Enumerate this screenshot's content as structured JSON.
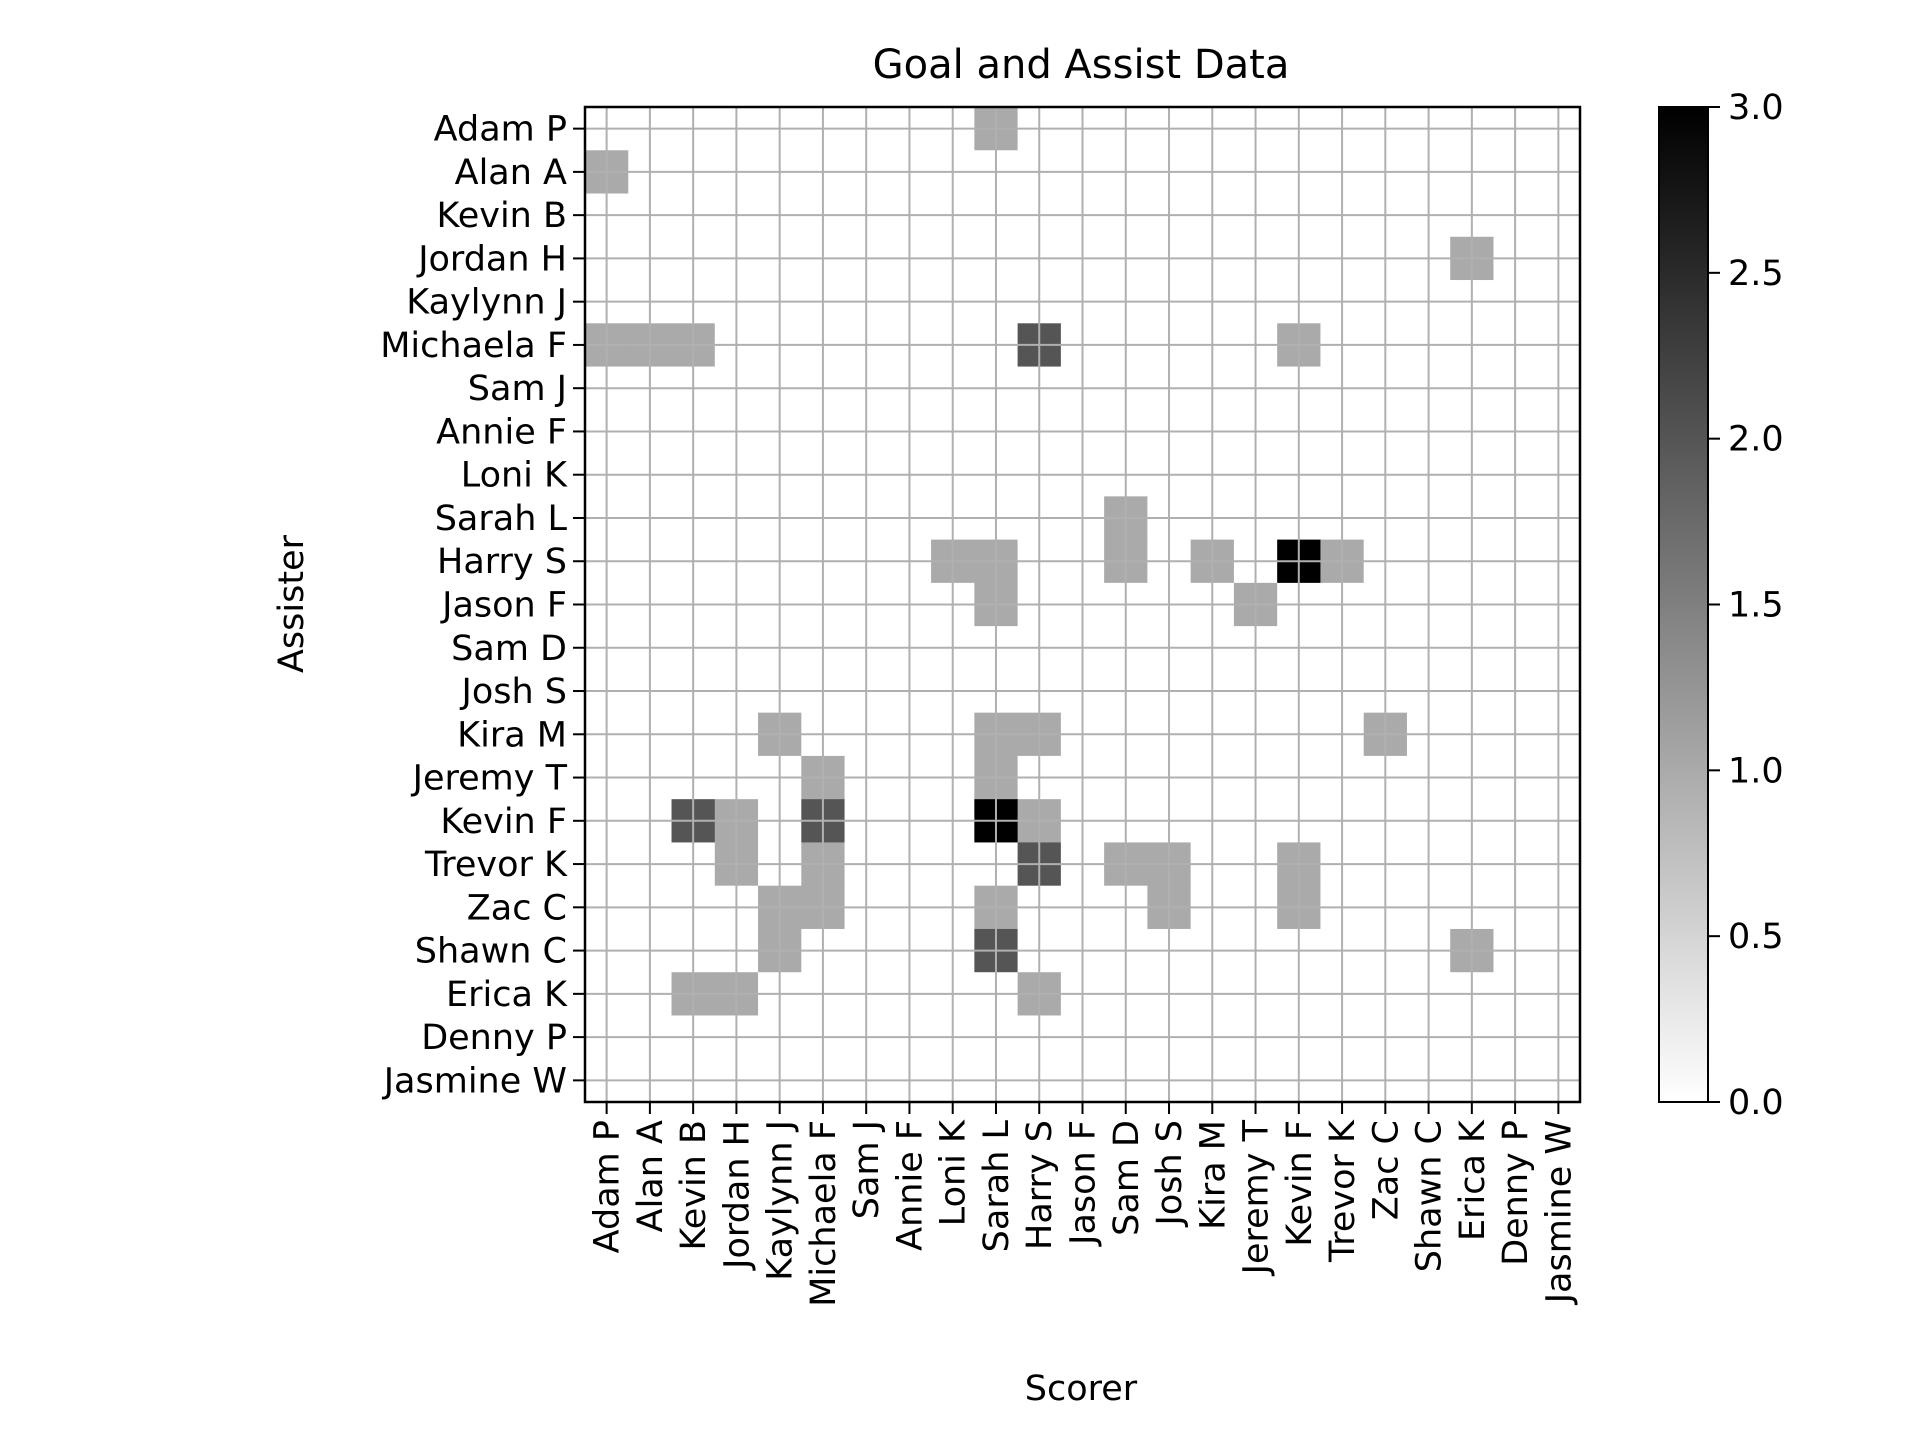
{
  "chart_data": {
    "type": "heatmap",
    "title": "Goal and Assist Data",
    "xlabel": "Scorer",
    "ylabel": "Assister",
    "x_categories": [
      "Adam P",
      "Alan A",
      "Kevin B",
      "Jordan H",
      "Kaylynn J",
      "Michaela F",
      "Sam J",
      "Annie F",
      "Loni K",
      "Sarah L",
      "Harry S",
      "Jason F",
      "Sam D",
      "Josh S",
      "Kira M",
      "Jeremy T",
      "Kevin F",
      "Trevor K",
      "Zac C",
      "Shawn C",
      "Erica K",
      "Denny P",
      "Jasmine W"
    ],
    "y_categories": [
      "Adam P",
      "Alan A",
      "Kevin B",
      "Jordan H",
      "Kaylynn J",
      "Michaela F",
      "Sam J",
      "Annie F",
      "Loni K",
      "Sarah L",
      "Harry S",
      "Jason F",
      "Sam D",
      "Josh S",
      "Kira M",
      "Jeremy T",
      "Kevin F",
      "Trevor K",
      "Zac C",
      "Shawn C",
      "Erica K",
      "Denny P",
      "Jasmine W"
    ],
    "values": [
      [
        0,
        0,
        0,
        0,
        0,
        0,
        0,
        0,
        0,
        1,
        0,
        0,
        0,
        0,
        0,
        0,
        0,
        0,
        0,
        0,
        0,
        0,
        0
      ],
      [
        1,
        0,
        0,
        0,
        0,
        0,
        0,
        0,
        0,
        0,
        0,
        0,
        0,
        0,
        0,
        0,
        0,
        0,
        0,
        0,
        0,
        0,
        0
      ],
      [
        0,
        0,
        0,
        0,
        0,
        0,
        0,
        0,
        0,
        0,
        0,
        0,
        0,
        0,
        0,
        0,
        0,
        0,
        0,
        0,
        0,
        0,
        0
      ],
      [
        0,
        0,
        0,
        0,
        0,
        0,
        0,
        0,
        0,
        0,
        0,
        0,
        0,
        0,
        0,
        0,
        0,
        0,
        0,
        0,
        1,
        0,
        0
      ],
      [
        0,
        0,
        0,
        0,
        0,
        0,
        0,
        0,
        0,
        0,
        0,
        0,
        0,
        0,
        0,
        0,
        0,
        0,
        0,
        0,
        0,
        0,
        0
      ],
      [
        1,
        1,
        1,
        0,
        0,
        0,
        0,
        0,
        0,
        0,
        2,
        0,
        0,
        0,
        0,
        0,
        1,
        0,
        0,
        0,
        0,
        0,
        0
      ],
      [
        0,
        0,
        0,
        0,
        0,
        0,
        0,
        0,
        0,
        0,
        0,
        0,
        0,
        0,
        0,
        0,
        0,
        0,
        0,
        0,
        0,
        0,
        0
      ],
      [
        0,
        0,
        0,
        0,
        0,
        0,
        0,
        0,
        0,
        0,
        0,
        0,
        0,
        0,
        0,
        0,
        0,
        0,
        0,
        0,
        0,
        0,
        0
      ],
      [
        0,
        0,
        0,
        0,
        0,
        0,
        0,
        0,
        0,
        0,
        0,
        0,
        0,
        0,
        0,
        0,
        0,
        0,
        0,
        0,
        0,
        0,
        0
      ],
      [
        0,
        0,
        0,
        0,
        0,
        0,
        0,
        0,
        0,
        0,
        0,
        0,
        1,
        0,
        0,
        0,
        0,
        0,
        0,
        0,
        0,
        0,
        0
      ],
      [
        0,
        0,
        0,
        0,
        0,
        0,
        0,
        0,
        1,
        1,
        0,
        0,
        1,
        0,
        1,
        0,
        3,
        1,
        0,
        0,
        0,
        0,
        0
      ],
      [
        0,
        0,
        0,
        0,
        0,
        0,
        0,
        0,
        0,
        1,
        0,
        0,
        0,
        0,
        0,
        1,
        0,
        0,
        0,
        0,
        0,
        0,
        0
      ],
      [
        0,
        0,
        0,
        0,
        0,
        0,
        0,
        0,
        0,
        0,
        0,
        0,
        0,
        0,
        0,
        0,
        0,
        0,
        0,
        0,
        0,
        0,
        0
      ],
      [
        0,
        0,
        0,
        0,
        0,
        0,
        0,
        0,
        0,
        0,
        0,
        0,
        0,
        0,
        0,
        0,
        0,
        0,
        0,
        0,
        0,
        0,
        0
      ],
      [
        0,
        0,
        0,
        0,
        1,
        0,
        0,
        0,
        0,
        1,
        1,
        0,
        0,
        0,
        0,
        0,
        0,
        0,
        1,
        0,
        0,
        0,
        0
      ],
      [
        0,
        0,
        0,
        0,
        0,
        1,
        0,
        0,
        0,
        1,
        0,
        0,
        0,
        0,
        0,
        0,
        0,
        0,
        0,
        0,
        0,
        0,
        0
      ],
      [
        0,
        0,
        2,
        1,
        0,
        2,
        0,
        0,
        0,
        3,
        1,
        0,
        0,
        0,
        0,
        0,
        0,
        0,
        0,
        0,
        0,
        0,
        0
      ],
      [
        0,
        0,
        0,
        1,
        0,
        1,
        0,
        0,
        0,
        0,
        2,
        0,
        1,
        1,
        0,
        0,
        1,
        0,
        0,
        0,
        0,
        0,
        0
      ],
      [
        0,
        0,
        0,
        0,
        1,
        1,
        0,
        0,
        0,
        1,
        0,
        0,
        0,
        1,
        0,
        0,
        1,
        0,
        0,
        0,
        0,
        0,
        0
      ],
      [
        0,
        0,
        0,
        0,
        1,
        0,
        0,
        0,
        0,
        2,
        0,
        0,
        0,
        0,
        0,
        0,
        0,
        0,
        0,
        0,
        1,
        0,
        0
      ],
      [
        0,
        0,
        1,
        1,
        0,
        0,
        0,
        0,
        0,
        0,
        1,
        0,
        0,
        0,
        0,
        0,
        0,
        0,
        0,
        0,
        0,
        0,
        0
      ],
      [
        0,
        0,
        0,
        0,
        0,
        0,
        0,
        0,
        0,
        0,
        0,
        0,
        0,
        0,
        0,
        0,
        0,
        0,
        0,
        0,
        0,
        0,
        0
      ],
      [
        0,
        0,
        0,
        0,
        0,
        0,
        0,
        0,
        0,
        0,
        0,
        0,
        0,
        0,
        0,
        0,
        0,
        0,
        0,
        0,
        0,
        0,
        0
      ]
    ],
    "colormap": "gray_r",
    "value_range": [
      0,
      3
    ],
    "colorbar_ticks": [
      "0.0",
      "0.5",
      "1.0",
      "1.5",
      "2.0",
      "2.5",
      "3.0"
    ],
    "grid": true,
    "grid_color": "#b0b0b0"
  }
}
